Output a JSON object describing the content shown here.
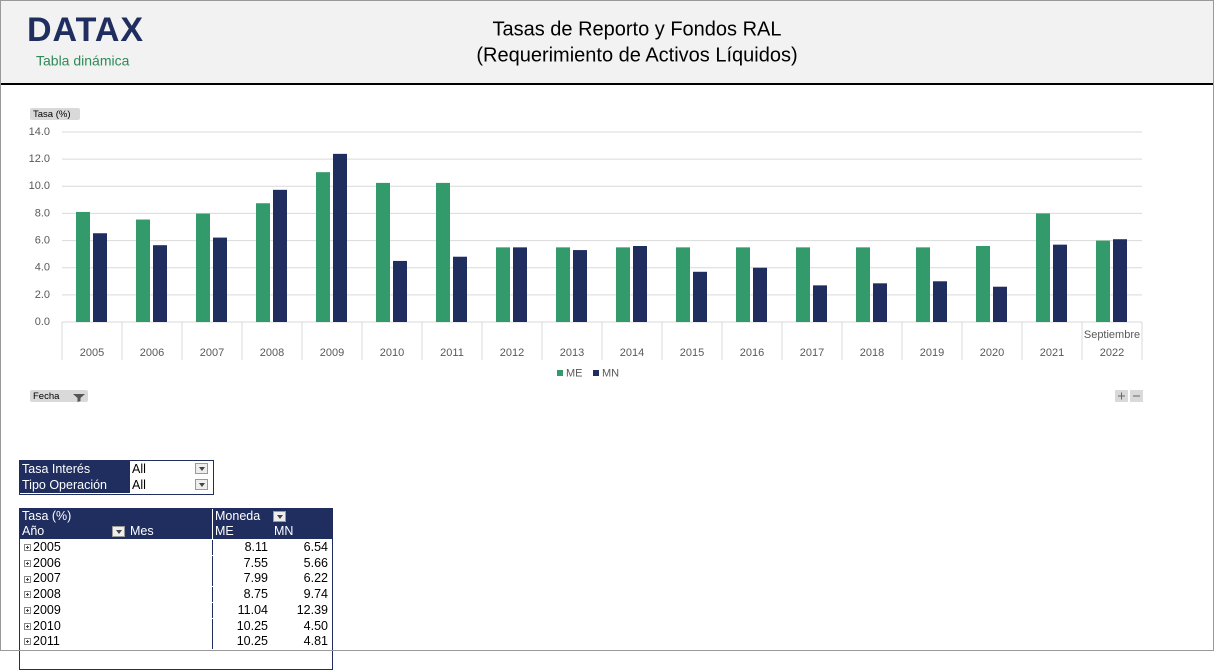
{
  "header": {
    "logo": "DATAX",
    "subtitle": "Tabla dinámica",
    "title_line1": "Tasas de Reporto y Fondos RAL",
    "title_line2": "(Requerimiento de Activos Líquidos)"
  },
  "chart_data": {
    "type": "bar",
    "y_axis_button": "Tasa (%)",
    "filter_button": "Fecha",
    "categories": [
      "2005",
      "2006",
      "2007",
      "2008",
      "2009",
      "2010",
      "2011",
      "2012",
      "2013",
      "2014",
      "2015",
      "2016",
      "2017",
      "2018",
      "2019",
      "2020",
      "2021",
      "2022"
    ],
    "month_labels": [
      null,
      null,
      null,
      null,
      null,
      null,
      null,
      null,
      null,
      null,
      null,
      null,
      null,
      null,
      null,
      null,
      null,
      "Septiembre"
    ],
    "series": [
      {
        "name": "ME",
        "color": "#339a6b",
        "values": [
          8.11,
          7.55,
          7.99,
          8.75,
          11.04,
          10.25,
          10.25,
          5.5,
          5.5,
          5.5,
          5.5,
          5.5,
          5.5,
          5.5,
          5.5,
          5.6,
          8.0,
          6.0
        ]
      },
      {
        "name": "MN",
        "color": "#1f2d5f",
        "values": [
          6.54,
          5.66,
          6.22,
          9.74,
          12.39,
          4.5,
          4.81,
          5.5,
          5.3,
          5.6,
          3.7,
          4.0,
          2.7,
          2.85,
          3.0,
          2.6,
          5.7,
          6.1
        ]
      }
    ],
    "ylim": [
      0,
      14
    ],
    "yticks": [
      {
        "value": 0,
        "label": "0.0"
      },
      {
        "value": 2,
        "label": "2.0"
      },
      {
        "value": 4,
        "label": "4.0"
      },
      {
        "value": 6,
        "label": "6.0"
      },
      {
        "value": 8,
        "label": "8.0"
      },
      {
        "value": 10,
        "label": "10.0"
      },
      {
        "value": 12,
        "label": "12.0"
      },
      {
        "value": 14,
        "label": "14.0"
      }
    ],
    "grid": true,
    "legend": "bottom"
  },
  "filters": {
    "rows": [
      [
        "Tasa Interés",
        "All"
      ],
      [
        "Tipo Operación",
        "All"
      ]
    ]
  },
  "pivot": {
    "header": [
      "Tasa (%)",
      "Moneda"
    ],
    "columns": [
      "Año",
      "Mes",
      "ME",
      "MN"
    ],
    "rows": [
      [
        "2005",
        "8.11",
        "6.54"
      ],
      [
        "2006",
        "7.55",
        "5.66"
      ],
      [
        "2007",
        "7.99",
        "6.22"
      ],
      [
        "2008",
        "8.75",
        "9.74"
      ],
      [
        "2009",
        "11.04",
        "12.39"
      ],
      [
        "2010",
        "10.25",
        "4.50"
      ],
      [
        "2011",
        "10.25",
        "4.81"
      ]
    ]
  }
}
